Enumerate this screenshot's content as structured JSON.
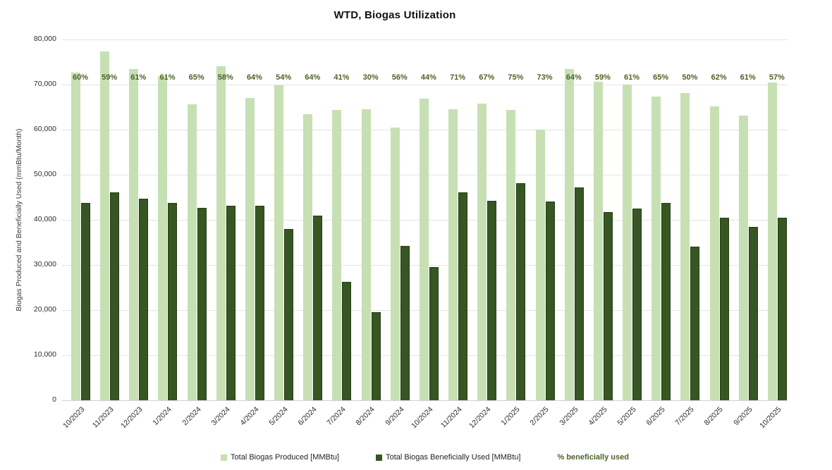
{
  "title": "WTD, Biogas Utilization",
  "y_axis_title": "Biogas Produced and Beneficially Used (mmBtu/Month)",
  "legend": {
    "produced": "Total Biogas Produced [MMBtu]",
    "used": "Total Biogas Beneficially Used [MMBtu]",
    "percent": "% beneficially used"
  },
  "colors": {
    "produced": "#c6e0b4",
    "used": "#375623",
    "used_border": "#263d14",
    "percent_text": "#4e6228",
    "gridline": "#e4e4e4"
  },
  "chart_data": {
    "type": "bar",
    "title": "WTD, Biogas Utilization",
    "ylabel": "Biogas Produced and Beneficially Used (mmBtu/Month)",
    "ylim": [
      0,
      80000
    ],
    "grid": true,
    "legend_position": "bottom",
    "y_ticks": [
      "80,000",
      "70,000",
      "60,000",
      "50,000",
      "40,000",
      "30,000",
      "20,000",
      "10,000",
      "0"
    ],
    "categories": [
      "10/2023",
      "11/2023",
      "12/2023",
      "1/2024",
      "2/2024",
      "3/2024",
      "4/2024",
      "5/2024",
      "6/2024",
      "7/2024",
      "8/2024",
      "9/2024",
      "10/2024",
      "11/2024",
      "12/2024",
      "1/2025",
      "2/2025",
      "3/2025",
      "4/2025",
      "5/2025",
      "6/2025",
      "7/2025",
      "8/2025",
      "9/2025",
      "10/2025"
    ],
    "series": [
      {
        "name": "Total Biogas Produced [MMBtu]",
        "color": "#c6e0b4",
        "values": [
          72600,
          77400,
          73400,
          71800,
          65700,
          74100,
          67000,
          69900,
          63500,
          64300,
          64500,
          60500,
          66900,
          64600,
          65800,
          64300,
          60000,
          73500,
          70700,
          70000,
          67400,
          68100,
          65200,
          63200,
          70500
        ]
      },
      {
        "name": "Total Biogas Beneficially Used [MMBtu]",
        "color": "#375623",
        "values": [
          43600,
          46000,
          44500,
          43600,
          42500,
          43000,
          43000,
          37800,
          40800,
          26100,
          19400,
          34000,
          29400,
          46000,
          44000,
          48000,
          43900,
          47000,
          41500,
          42400,
          43600,
          33900,
          40300,
          38300,
          40300
        ]
      }
    ],
    "percent_labels": [
      "60%",
      "59%",
      "61%",
      "61%",
      "65%",
      "58%",
      "64%",
      "54%",
      "64%",
      "41%",
      "30%",
      "56%",
      "44%",
      "71%",
      "67%",
      "75%",
      "73%",
      "64%",
      "59%",
      "61%",
      "65%",
      "50%",
      "62%",
      "61%",
      "57%"
    ]
  }
}
